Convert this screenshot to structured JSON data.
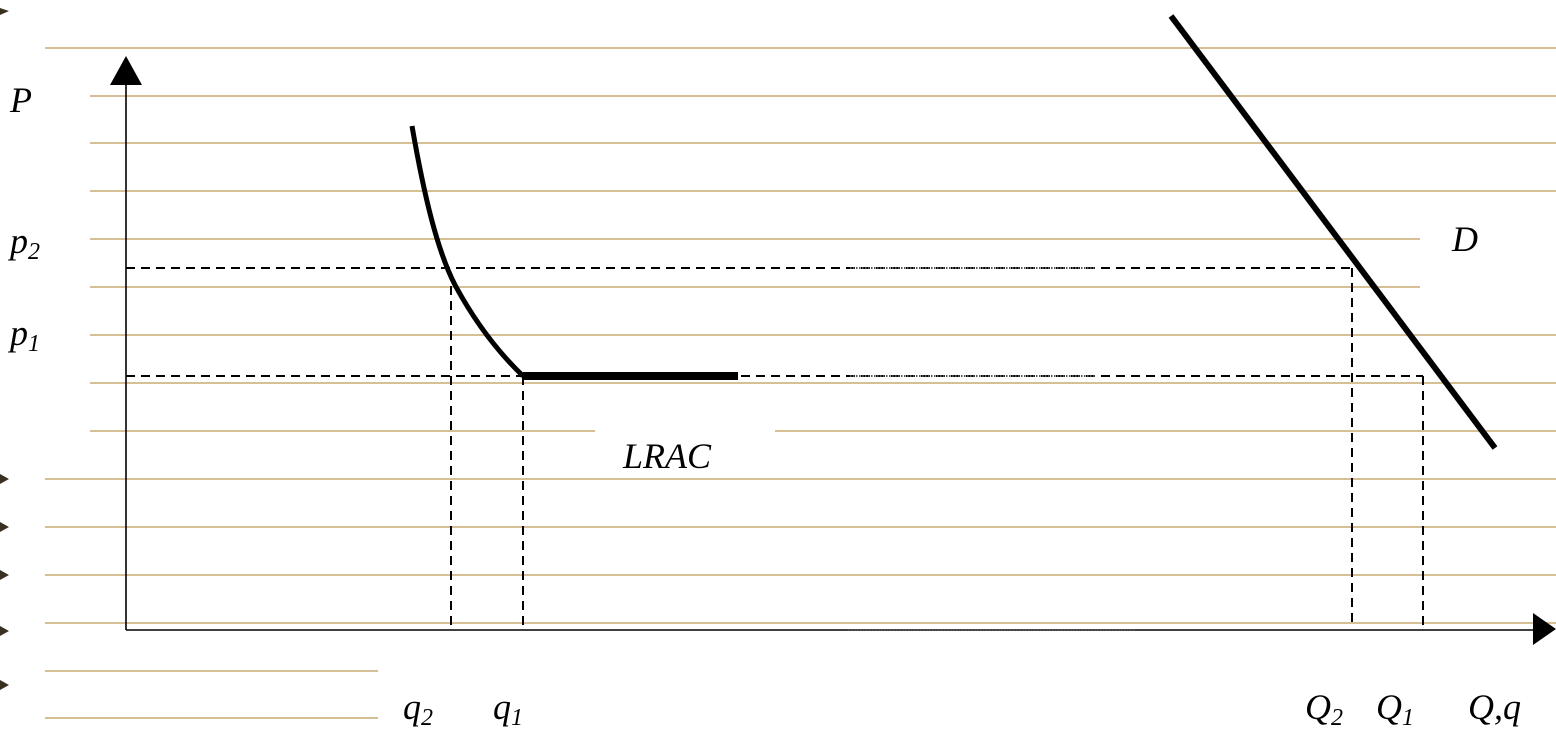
{
  "labels": {
    "y_axis": "P",
    "x_axis": "Q,q",
    "p2": "p",
    "p2_sub": "2",
    "p1": "p",
    "p1_sub": "1",
    "q2": "q",
    "q2_sub": "2",
    "q1": "q",
    "q1_sub": "1",
    "Q2": "Q",
    "Q2_sub": "2",
    "Q1": "Q",
    "Q1_sub": "1",
    "demand": "D",
    "lrac": "LRAC"
  },
  "colors": {
    "ruled_lines": "#c8aa72",
    "ink": "#000000"
  }
}
